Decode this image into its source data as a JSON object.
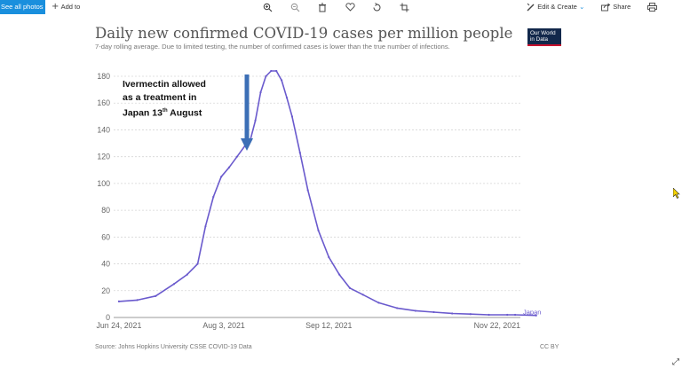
{
  "toolbar": {
    "see_all_label": "See all photos",
    "add_to_label": "Add to",
    "edit_create_label": "Edit & Create",
    "share_label": "Share",
    "icons": [
      "plus-icon",
      "zoom-in-icon",
      "zoom-out-icon",
      "delete-icon",
      "heart-icon",
      "rotate-icon",
      "crop-icon",
      "edit-create-icon",
      "chevron-down-icon",
      "share-icon",
      "print-icon"
    ]
  },
  "chart": {
    "title": "Daily new confirmed COVID-19 cases per million people",
    "subtitle": "7-day rolling average. Due to limited testing, the number of confirmed cases is lower than the true number of infections.",
    "logo_line1": "Our World",
    "logo_line2": "in Data",
    "annotation_line1": "Ivermectin allowed",
    "annotation_line2": "as a treatment in",
    "annotation_line3_prefix": "Japan 13",
    "annotation_line3_sup": "th",
    "annotation_line3_suffix": " August",
    "source": "Source: Johns Hopkins University CSSE COVID-19 Data",
    "license": "CC BY",
    "colors": {
      "series": "#6a5acd",
      "arrow": "#3c6fb6",
      "logo_bg": "#12284b",
      "logo_accent": "#c8102e",
      "toolbar_accent": "#1a8fdd"
    }
  },
  "chart_data": {
    "type": "line",
    "title": "Daily new confirmed COVID-19 cases per million people",
    "subtitle": "7-day rolling average. Due to limited testing, the number of confirmed cases is lower than the true number of infections.",
    "xlabel": "",
    "ylabel": "",
    "ylim": [
      0,
      180
    ],
    "yticks": [
      0,
      20,
      40,
      60,
      80,
      100,
      120,
      140,
      160,
      180
    ],
    "xticks": [
      "2021-06-24",
      "2021-08-03",
      "2021-09-12",
      "2021-11-22"
    ],
    "xtick_labels": [
      "Jun 24, 2021",
      "Aug 3, 2021",
      "Sep 12, 2021",
      "Nov 22, 2021"
    ],
    "grid": "horizontal dotted",
    "annotation": {
      "text": "Ivermectin allowed as a treatment in Japan 13th August",
      "date": "2021-08-13"
    },
    "series": [
      {
        "name": "Japan",
        "x": [
          "2021-06-24",
          "2021-07-01",
          "2021-07-08",
          "2021-07-15",
          "2021-07-20",
          "2021-07-24",
          "2021-07-27",
          "2021-07-30",
          "2021-08-02",
          "2021-08-05",
          "2021-08-08",
          "2021-08-11",
          "2021-08-13",
          "2021-08-15",
          "2021-08-17",
          "2021-08-19",
          "2021-08-21",
          "2021-08-23",
          "2021-08-25",
          "2021-08-27",
          "2021-08-29",
          "2021-09-01",
          "2021-09-04",
          "2021-09-08",
          "2021-09-12",
          "2021-09-16",
          "2021-09-20",
          "2021-09-25",
          "2021-10-01",
          "2021-10-08",
          "2021-10-15",
          "2021-10-22",
          "2021-10-29",
          "2021-11-05",
          "2021-11-12",
          "2021-11-19",
          "2021-11-22",
          "2021-11-30"
        ],
        "y": [
          12,
          13,
          16,
          25,
          32,
          40,
          68,
          90,
          105,
          112,
          120,
          128,
          132,
          147,
          168,
          180,
          184,
          184,
          177,
          164,
          150,
          123,
          95,
          65,
          45,
          32,
          22,
          17,
          11,
          7,
          5,
          4,
          3,
          2.5,
          2,
          2,
          2,
          1.5
        ]
      }
    ]
  }
}
